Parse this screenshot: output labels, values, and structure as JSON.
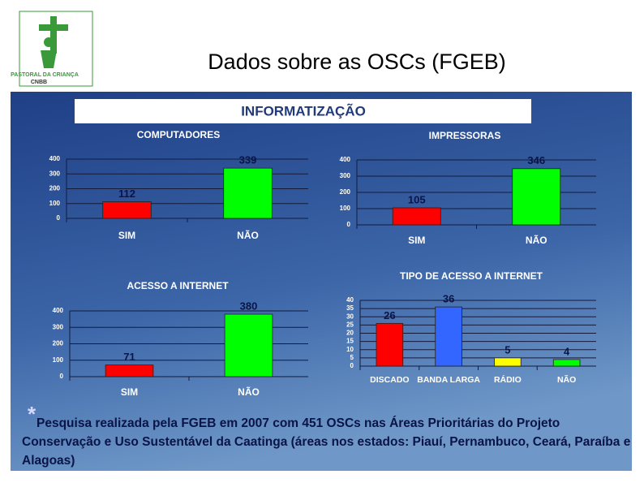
{
  "header": {
    "title": "Dados sobre as OSCs (FGEB)",
    "logo_name": "PASTORAL DA CRIANÇA",
    "logo_org": "CNBB"
  },
  "heading": "INFORMATIZAÇÃO",
  "chart_data": [
    {
      "type": "bar",
      "title": "COMPUTADORES",
      "categories": [
        "SIM",
        "NÃO"
      ],
      "values": [
        112,
        339
      ],
      "colors": [
        "#ff0000",
        "#00ff00"
      ],
      "ylim": [
        0,
        400
      ],
      "yticks": [
        0,
        100,
        200,
        300,
        400
      ],
      "grid": true
    },
    {
      "type": "bar",
      "title": "IMPRESSORAS",
      "categories": [
        "SIM",
        "NÃO"
      ],
      "values": [
        105,
        346
      ],
      "colors": [
        "#ff0000",
        "#00ff00"
      ],
      "ylim": [
        0,
        400
      ],
      "yticks": [
        0,
        100,
        200,
        300,
        400
      ],
      "grid": true
    },
    {
      "type": "bar",
      "title": "ACESSO A INTERNET",
      "categories": [
        "SIM",
        "NÃO"
      ],
      "values": [
        71,
        380
      ],
      "colors": [
        "#ff0000",
        "#00ff00"
      ],
      "ylim": [
        0,
        400
      ],
      "yticks": [
        0,
        100,
        200,
        300,
        400
      ],
      "grid": true
    },
    {
      "type": "bar",
      "title": "TIPO DE ACESSO A INTERNET",
      "categories": [
        "DISCADO",
        "BANDA LARGA",
        "RÁDIO",
        "NÃO"
      ],
      "values": [
        26,
        36,
        5,
        4
      ],
      "colors": [
        "#ff0000",
        "#3366ff",
        "#ffff00",
        "#00ff00"
      ],
      "ylim": [
        0,
        40
      ],
      "yticks": [
        0,
        5,
        10,
        15,
        20,
        25,
        30,
        35,
        40
      ],
      "grid": true
    }
  ],
  "footnote": {
    "marker": "*",
    "text": "Pesquisa realizada pela FGEB em 2007 com 451 OSCs  nas Áreas Prioritárias do Projeto Conservação e Uso Sustentável da Caatinga (áreas nos estados: Piauí, Pernambuco, Ceará, Paraíba e Alagoas)"
  }
}
